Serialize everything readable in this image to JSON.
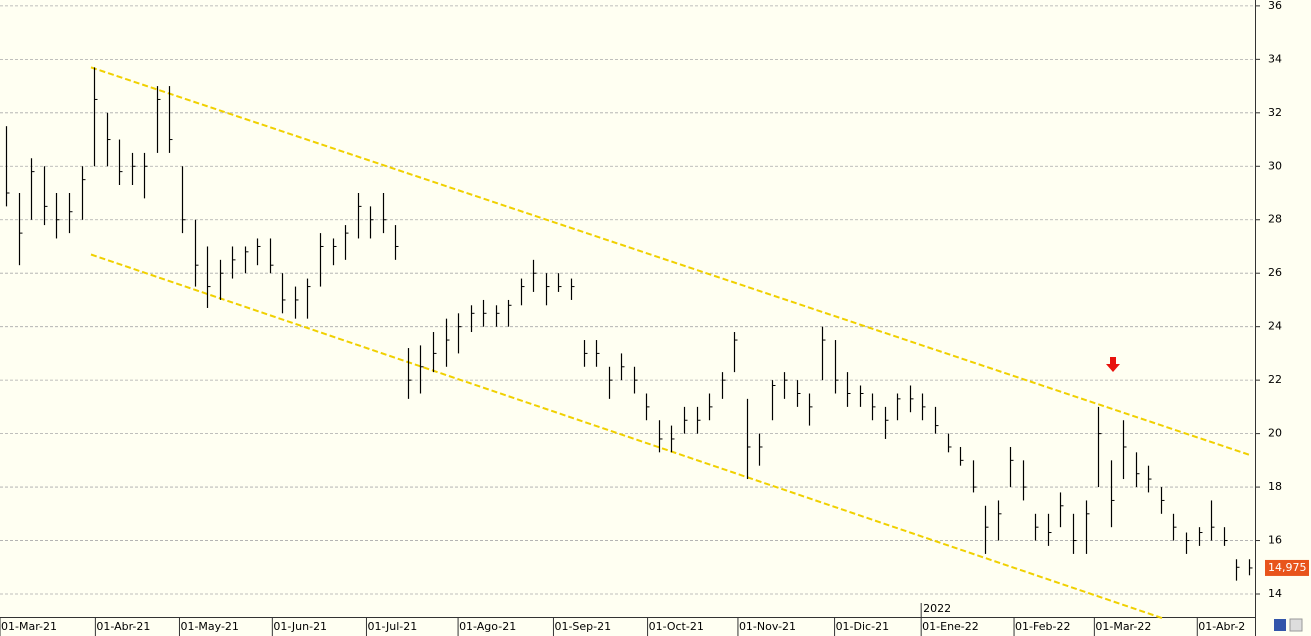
{
  "chart_data": {
    "type": "ohlc",
    "high": [
      31.5,
      29,
      30.3,
      30,
      29,
      29,
      30,
      33.7,
      32,
      31,
      30.5,
      30.5,
      33,
      33,
      30,
      28,
      27,
      26.5,
      27,
      27,
      27.3,
      27.3,
      26,
      25.5,
      25.8,
      27.5,
      27.3,
      27.8,
      29,
      28.5,
      29,
      27.8,
      23.2,
      23.3,
      23.8,
      24.3,
      24.5,
      24.8,
      25,
      24.8,
      25,
      25.8,
      26.5,
      26,
      26,
      25.8,
      23.5,
      23.5,
      22.5,
      23,
      22.5,
      21.5,
      20.5,
      20.3,
      21,
      21,
      21.5,
      22.3,
      23.8,
      21.3,
      20,
      22,
      22.3,
      22,
      21.5,
      24,
      23.5,
      22.3,
      21.8,
      21.5,
      21,
      21.5,
      21.8,
      21.5,
      21,
      20,
      19.5,
      19,
      17.3,
      17.5,
      19.5,
      19,
      17,
      17,
      17.8,
      17,
      17.5,
      21,
      19,
      20.5,
      19.3,
      18.8,
      18,
      17,
      16.3,
      16.5,
      17.5,
      16.5,
      15.3,
      15.3
    ],
    "low": [
      28.5,
      26.3,
      28,
      27.8,
      27.3,
      27.5,
      28,
      30,
      30,
      29.3,
      29.3,
      28.8,
      30.5,
      30.5,
      27.5,
      25.5,
      24.7,
      25,
      25.8,
      26,
      26.3,
      26,
      24.5,
      24.3,
      24.3,
      25.5,
      26.3,
      26.5,
      27.3,
      27.3,
      27.5,
      26.5,
      21.3,
      21.5,
      22.3,
      22.5,
      23,
      23.8,
      24,
      24,
      24,
      24.8,
      25.3,
      24.8,
      25.3,
      25,
      22.5,
      22.5,
      21.3,
      22,
      21.5,
      20.5,
      19.3,
      19.3,
      20,
      20,
      20.5,
      21.3,
      22.3,
      18.3,
      18.8,
      20.5,
      21.3,
      21,
      20.3,
      22,
      21.5,
      21,
      21,
      20.5,
      19.8,
      20.5,
      20.8,
      20.5,
      20,
      19.3,
      18.8,
      17.8,
      15.5,
      16,
      18,
      17.5,
      16,
      15.8,
      16.5,
      15.5,
      15.5,
      18,
      16.5,
      18.3,
      18,
      17.8,
      17,
      16,
      15.5,
      15.8,
      16,
      15.8,
      14.5,
      14.7
    ],
    "close": [
      29,
      27.5,
      29.8,
      28.5,
      28,
      28.3,
      29.5,
      32.5,
      31,
      29.8,
      30,
      30,
      32.5,
      31,
      28,
      26.3,
      25.5,
      26,
      26.5,
      26.8,
      27,
      26.3,
      25,
      25,
      25.5,
      27,
      27,
      27.5,
      28.5,
      28,
      28,
      27,
      22,
      22.5,
      23,
      23.5,
      24,
      24.5,
      24.5,
      24.5,
      24.8,
      25.5,
      26,
      25.5,
      25.5,
      25.5,
      23,
      23,
      22,
      22.5,
      22,
      21,
      19.8,
      19.8,
      20.5,
      20.5,
      21,
      22,
      23.5,
      19.5,
      19.5,
      21.8,
      22,
      21.5,
      21,
      23.5,
      22,
      21.5,
      21.5,
      21,
      20.5,
      21.3,
      21.3,
      21,
      20.3,
      19.5,
      19,
      18,
      16.5,
      17,
      19,
      18,
      16.5,
      16.3,
      17.3,
      16,
      17,
      20,
      17.5,
      19.5,
      18.5,
      18.3,
      17.5,
      16.5,
      16,
      16.3,
      16.5,
      16,
      15,
      14.975
    ],
    "color": "#000000",
    "xlim": [
      0,
      100
    ],
    "xticks": [
      {
        "value": 0,
        "label": "01-Mar-21"
      },
      {
        "value": 7.6,
        "label": "01-Abr-21"
      },
      {
        "value": 14.3,
        "label": "01-May-21"
      },
      {
        "value": 21.7,
        "label": "01-Jun-21"
      },
      {
        "value": 29.2,
        "label": "01-Jul-21"
      },
      {
        "value": 36.5,
        "label": "01-Ago-21"
      },
      {
        "value": 44.1,
        "label": "01-Sep-21"
      },
      {
        "value": 51.6,
        "label": "01-Oct-21"
      },
      {
        "value": 58.8,
        "label": "01-Nov-21"
      },
      {
        "value": 66.5,
        "label": "01-Dic-21"
      },
      {
        "value": 73.4,
        "label": "01-Ene-22"
      },
      {
        "value": 80.8,
        "label": "01-Feb-22"
      },
      {
        "value": 87.2,
        "label": "01-Mar-22"
      },
      {
        "value": 95.4,
        "label": "01-Abr-2"
      }
    ],
    "year_marker": {
      "value": 73.4,
      "label": "2022"
    },
    "ylim": [
      13.14,
      36.22
    ],
    "yticks": [
      14,
      16,
      18,
      20,
      22,
      24,
      26,
      28,
      30,
      32,
      34,
      36
    ],
    "grid": true,
    "trend_lines": [
      {
        "color": "#f0d000",
        "x": [
          7.25,
          99.6
        ],
        "y": [
          33.7,
          19.2
        ]
      },
      {
        "color": "#f0d000",
        "x": [
          7.25,
          92.6
        ],
        "y": [
          26.7,
          13.1
        ]
      }
    ],
    "last_price": {
      "value": 14.975,
      "label": "14,975"
    }
  }
}
